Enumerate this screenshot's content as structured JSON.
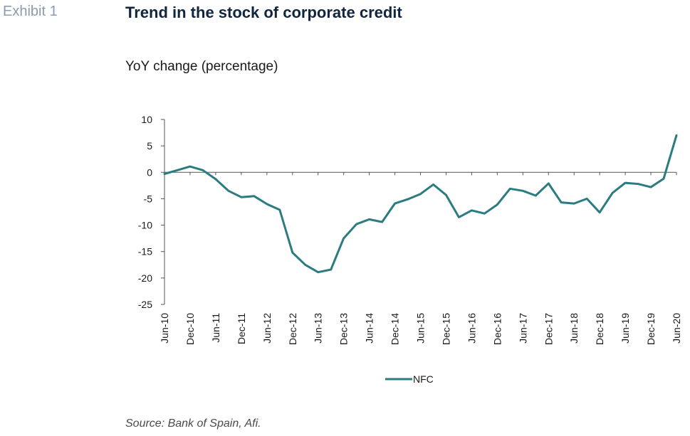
{
  "header": {
    "exhibit": "Exhibit 1",
    "title": "Trend in the stock of corporate credit",
    "subtitle": "YoY change (percentage)"
  },
  "footer": {
    "source": "Source: Bank of Spain, Afi."
  },
  "colors": {
    "series": "#2a7c80",
    "axis": "#555555"
  },
  "chart_data": {
    "type": "line",
    "title": "Trend in the stock of corporate credit",
    "ylabel": "YoY change (percentage)",
    "xlabel": "",
    "ylim": [
      -25,
      10
    ],
    "y_ticks": [
      10,
      5,
      0,
      -5,
      -10,
      -15,
      -20,
      -25
    ],
    "x_ticks": [
      "Jun-10",
      "Dec-10",
      "Jun-11",
      "Dec-11",
      "Jun-12",
      "Dec-12",
      "Jun-13",
      "Dec-13",
      "Jun-14",
      "Dec-14",
      "Jun-15",
      "Dec-15",
      "Jun-16",
      "Dec-16",
      "Jun-17",
      "Dec-17",
      "Jun-18",
      "Dec-18",
      "Jun-19",
      "Dec-19",
      "Jun-20"
    ],
    "grid": false,
    "legend": "bottom-center",
    "series": [
      {
        "name": "NFC",
        "x": [
          "Jun-10",
          "Sep-10",
          "Dec-10",
          "Mar-11",
          "Jun-11",
          "Sep-11",
          "Dec-11",
          "Mar-12",
          "Jun-12",
          "Sep-12",
          "Dec-12",
          "Mar-13",
          "Jun-13",
          "Sep-13",
          "Dec-13",
          "Mar-14",
          "Jun-14",
          "Sep-14",
          "Dec-14",
          "Mar-15",
          "Jun-15",
          "Sep-15",
          "Dec-15",
          "Mar-16",
          "Jun-16",
          "Sep-16",
          "Dec-16",
          "Mar-17",
          "Jun-17",
          "Sep-17",
          "Dec-17",
          "Mar-18",
          "Jun-18",
          "Sep-18",
          "Dec-18",
          "Mar-19",
          "Jun-19",
          "Sep-19",
          "Dec-19",
          "Mar-20",
          "Jun-20"
        ],
        "values": [
          -0.3,
          0.4,
          1.1,
          0.4,
          -1.3,
          -3.5,
          -4.7,
          -4.5,
          -6.0,
          -7.1,
          -15.2,
          -17.5,
          -18.9,
          -18.4,
          -12.5,
          -9.8,
          -8.9,
          -9.4,
          -5.9,
          -5.1,
          -4.1,
          -2.3,
          -4.3,
          -8.5,
          -7.2,
          -7.8,
          -6.1,
          -3.1,
          -3.5,
          -4.4,
          -2.1,
          -5.7,
          -5.9,
          -5.0,
          -7.6,
          -3.9,
          -2.0,
          -2.2,
          -2.8,
          -1.2,
          7.0
        ]
      }
    ]
  }
}
